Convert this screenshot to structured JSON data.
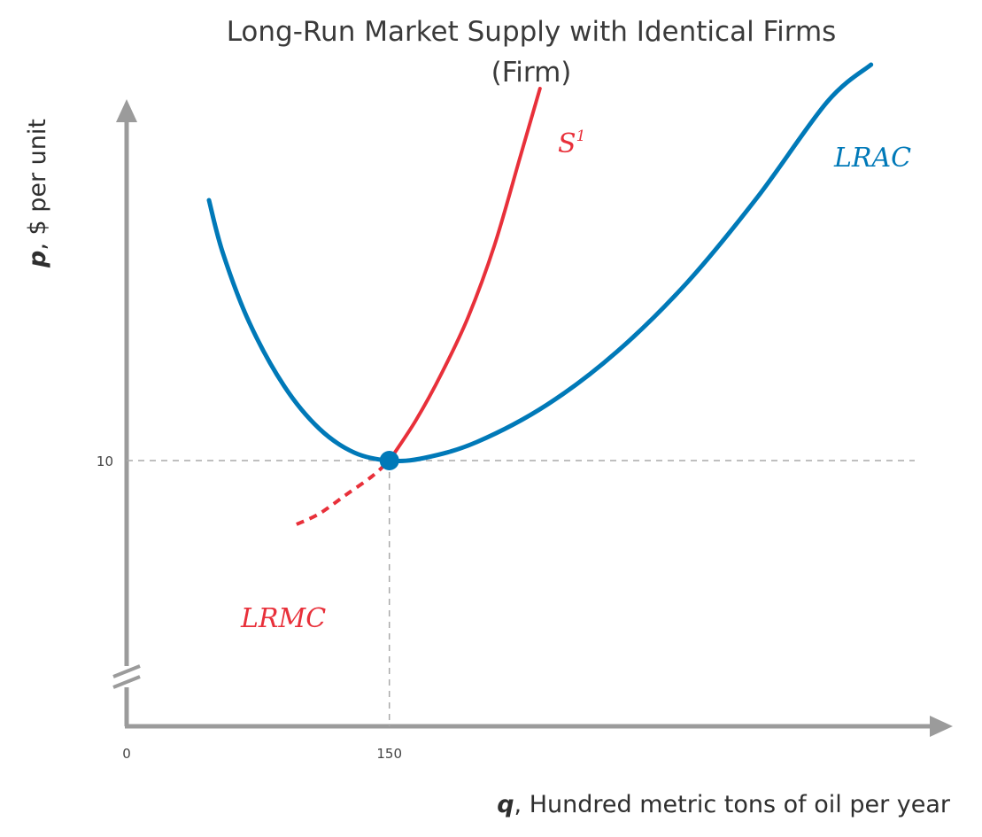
{
  "chart_data": {
    "type": "line",
    "title_line1": "Long-Run Market Supply with Identical Firms",
    "title_line2": "(Firm)",
    "xlabel_var": "q",
    "xlabel_rest": ", Hundred metric tons of oil per year",
    "ylabel_var": "p",
    "ylabel_rest": ", $ per unit",
    "x_ticks": [
      {
        "value": 0,
        "label": "0"
      },
      {
        "value": 150,
        "label": "150"
      }
    ],
    "y_ticks": [
      {
        "value": 10,
        "label": "10"
      }
    ],
    "xlim": [
      0,
      455
    ],
    "ylim": [
      5,
      17
    ],
    "y_axis_break": true,
    "grid": false,
    "reference_lines": {
      "x": 150,
      "y": 10,
      "style": "dashed"
    },
    "series": [
      {
        "name": "LRAC",
        "color": "#0079b8",
        "points": [
          [
            47,
            14.9
          ],
          [
            55,
            13.9
          ],
          [
            70,
            12.6
          ],
          [
            90,
            11.4
          ],
          [
            110,
            10.6
          ],
          [
            130,
            10.15
          ],
          [
            150,
            10.0
          ],
          [
            170,
            10.05
          ],
          [
            200,
            10.35
          ],
          [
            240,
            11.05
          ],
          [
            280,
            12.05
          ],
          [
            320,
            13.35
          ],
          [
            360,
            14.95
          ],
          [
            400,
            16.75
          ],
          [
            425,
            17.45
          ]
        ]
      },
      {
        "name": "S",
        "name_superscript": "1",
        "color": "#e8303a",
        "points": [
          [
            150,
            10.0
          ],
          [
            165,
            10.75
          ],
          [
            180,
            11.65
          ],
          [
            195,
            12.7
          ],
          [
            210,
            14.05
          ],
          [
            225,
            15.75
          ],
          [
            236,
            17.0
          ]
        ]
      },
      {
        "name": "LRMC",
        "color": "#e8303a",
        "dashed": true,
        "points": [
          [
            97,
            8.8
          ],
          [
            110,
            9.0
          ],
          [
            125,
            9.35
          ],
          [
            140,
            9.7
          ],
          [
            150,
            10.0
          ]
        ]
      }
    ],
    "highlight_point": {
      "x": 150,
      "y": 10,
      "color": "#0079b8"
    }
  }
}
